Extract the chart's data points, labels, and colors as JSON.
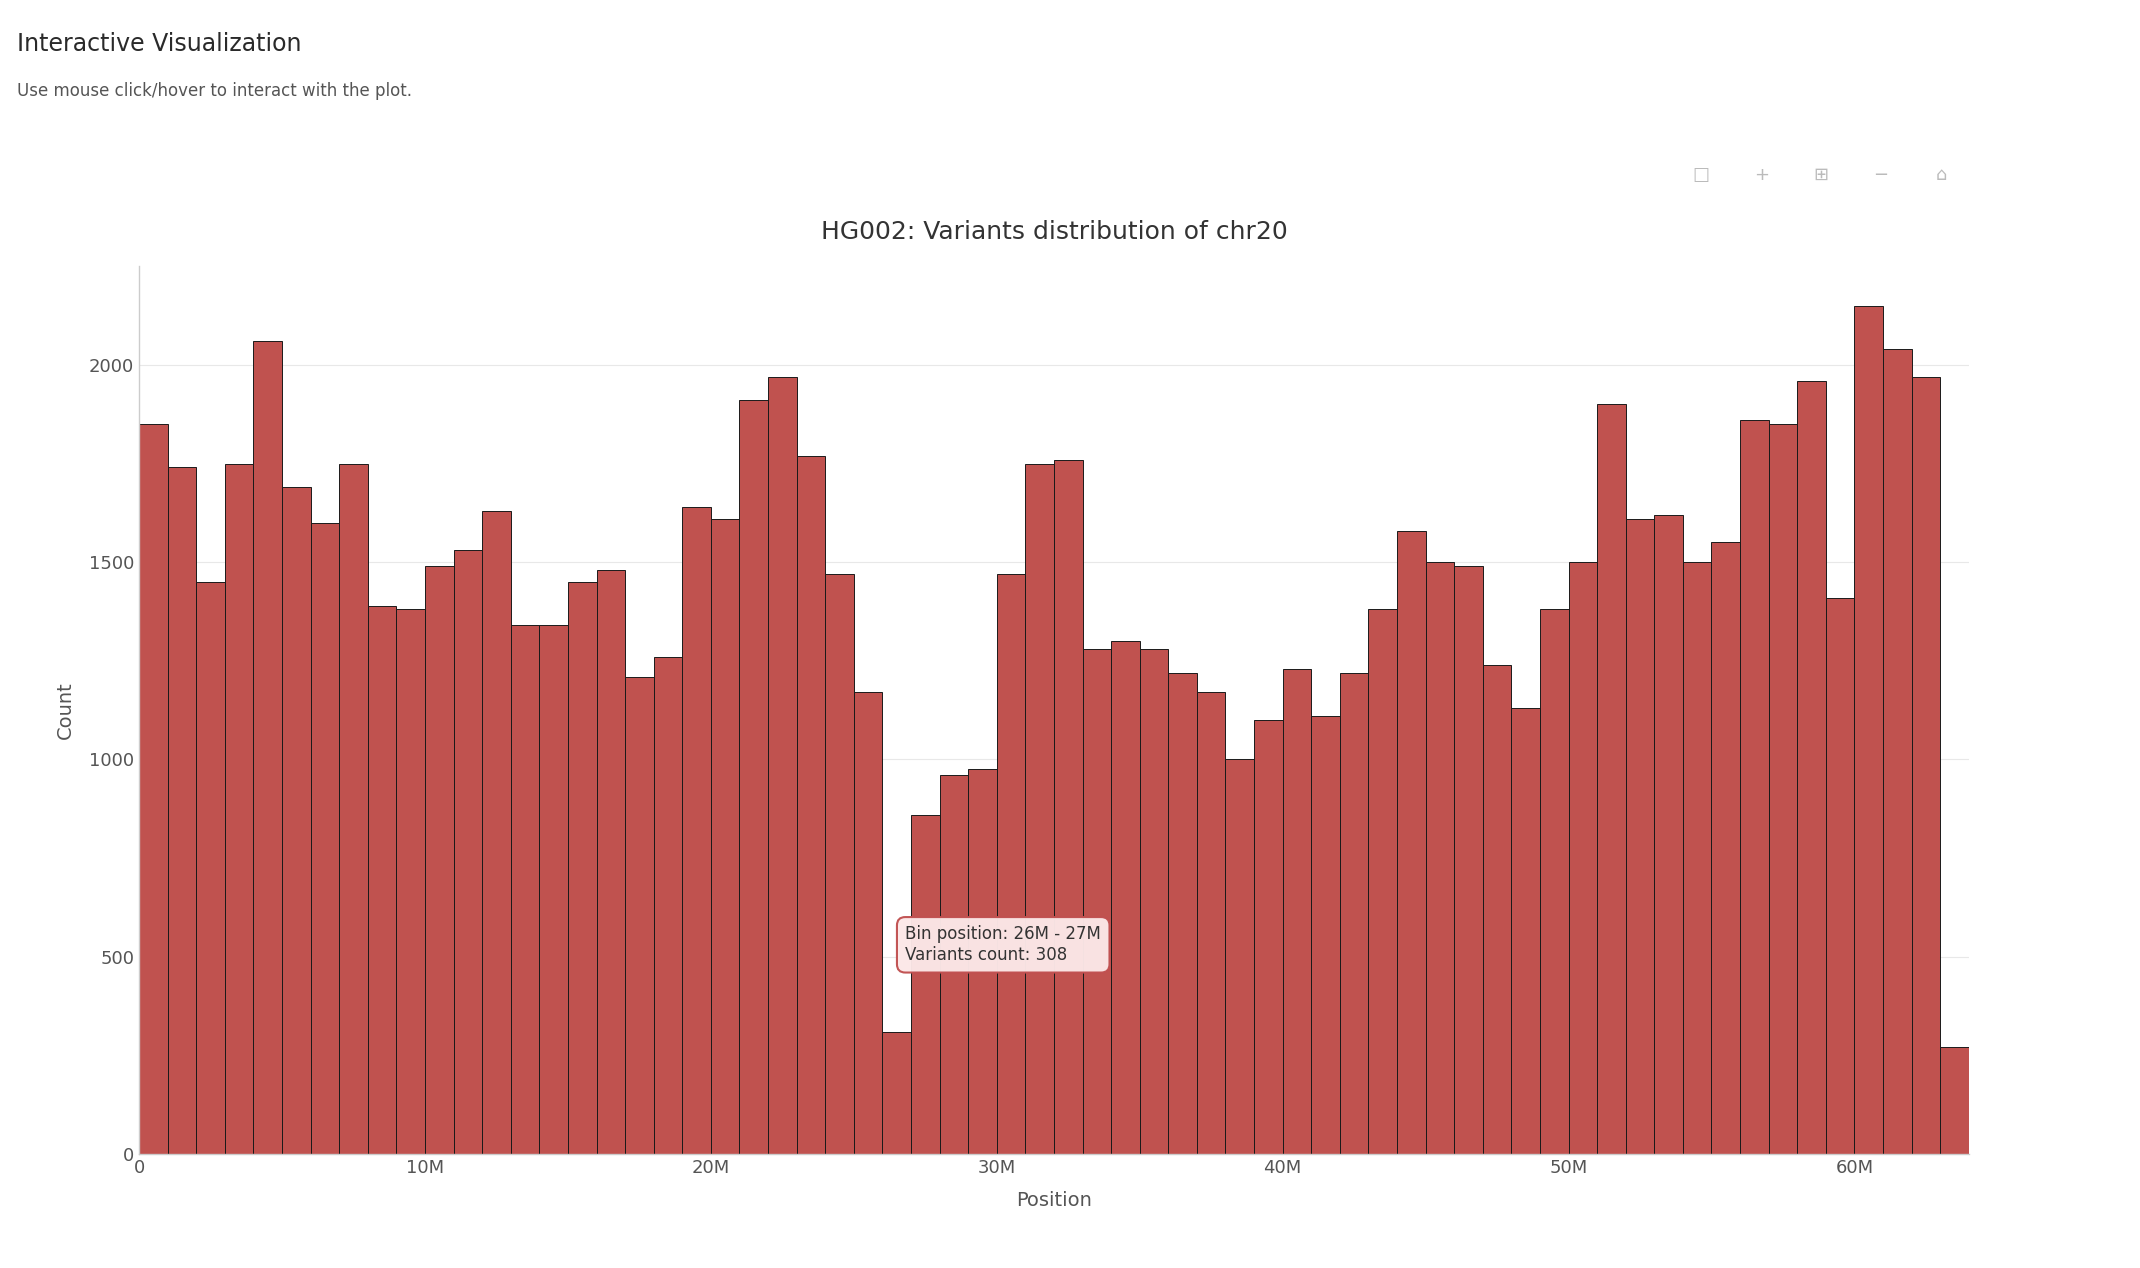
{
  "title": "HG002: Variants distribution of chr20",
  "xlabel": "Position",
  "ylabel": "Count",
  "header_title": "Interactive Visualization",
  "header_subtitle": "Use mouse click/hover to interact with the plot.",
  "bar_color": "#c0524f",
  "bar_edgecolor": "#1a1a1a",
  "background_color": "#ffffff",
  "ylim": [
    0,
    2250
  ],
  "yticks": [
    0,
    500,
    1000,
    1500,
    2000
  ],
  "tooltip_text": "Bin position: 26M - 27M\nVariants count: 308",
  "tooltip_bin": 26,
  "counts": [
    1850,
    1740,
    1450,
    1750,
    2060,
    1690,
    1600,
    1750,
    1390,
    1380,
    1490,
    1530,
    1630,
    1340,
    1340,
    1450,
    1480,
    1210,
    1260,
    1640,
    1610,
    1910,
    1970,
    1770,
    1470,
    1170,
    308,
    860,
    960,
    975,
    1470,
    1750,
    1760,
    1280,
    1300,
    1280,
    1220,
    1170,
    1000,
    1100,
    1230,
    1110,
    1220,
    1380,
    1580,
    1500,
    1490,
    1240,
    1130,
    1380,
    1500,
    1900,
    1610,
    1620,
    1500,
    1550,
    1860,
    1850,
    1960,
    1410,
    2150,
    2040,
    1970,
    270
  ]
}
